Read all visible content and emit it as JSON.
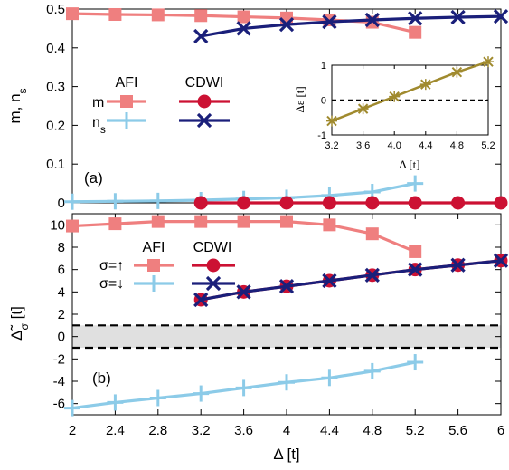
{
  "colors": {
    "afi": "#ef7f7f",
    "cdwi_m": "#cc1133",
    "ns_afi": "#8ccbe8",
    "cdwi_ns": "#1a1f7a",
    "inset_line": "#a08a2e",
    "gap_band": "#e0e0e0"
  },
  "chart_data": [
    {
      "type": "line",
      "panel_label": "(a)",
      "ylabel": "m, n_s",
      "xlim": [
        2,
        6
      ],
      "ylim": [
        0,
        0.5
      ],
      "xticks": [
        2,
        2.4,
        2.8,
        3.2,
        3.6,
        4,
        4.4,
        4.8,
        5.2,
        5.6,
        6
      ],
      "yticks": [
        "0",
        "0.1",
        "0.2",
        "0.3",
        "0.4",
        "0.5"
      ],
      "yticks_values": [
        0,
        0.1,
        0.2,
        0.3,
        0.4,
        0.5
      ],
      "legend": {
        "columns": [
          "AFI",
          "CDWI"
        ],
        "rows": [
          "m",
          "n_s"
        ]
      },
      "series": [
        {
          "name": "m AFI",
          "marker": "square",
          "color": "#ef7f7f",
          "x": [
            2,
            2.4,
            2.8,
            3.2,
            3.6,
            4,
            4.4,
            4.8,
            5.2
          ],
          "values": [
            0.488,
            0.486,
            0.485,
            0.483,
            0.48,
            0.477,
            0.472,
            0.466,
            0.44
          ]
        },
        {
          "name": "n_s AFI",
          "marker": "plus",
          "color": "#8ccbe8",
          "x": [
            2,
            2.4,
            2.8,
            3.2,
            3.6,
            4,
            4.4,
            4.8,
            5.2
          ],
          "values": [
            0.003,
            0.004,
            0.005,
            0.007,
            0.01,
            0.013,
            0.019,
            0.028,
            0.05
          ]
        },
        {
          "name": "m CDWI",
          "marker": "circle",
          "color": "#cc1133",
          "x": [
            3.2,
            3.6,
            4,
            4.4,
            4.8,
            5.2,
            5.6,
            6
          ],
          "values": [
            0,
            0,
            0,
            0,
            0,
            0,
            0,
            0
          ]
        },
        {
          "name": "n_s CDWI",
          "marker": "x",
          "color": "#1a1f7a",
          "x": [
            3.2,
            3.6,
            4,
            4.4,
            4.8,
            5.2,
            5.6,
            6
          ],
          "values": [
            0.43,
            0.45,
            0.46,
            0.467,
            0.472,
            0.476,
            0.479,
            0.481
          ]
        }
      ],
      "inset": {
        "type": "line",
        "xlabel": "Δ [t]",
        "ylabel": "Δε [t]",
        "xlim": [
          3.2,
          5.2
        ],
        "ylim": [
          -1,
          1
        ],
        "xticks": [
          "3.2",
          "3.6",
          "4.0",
          "4.4",
          "4.8",
          "5.2"
        ],
        "xticks_values": [
          3.2,
          3.6,
          4.0,
          4.4,
          4.8,
          5.2
        ],
        "yticks": [
          "-1",
          "0",
          "1"
        ],
        "yticks_values": [
          -1,
          0,
          1
        ],
        "reference_line": 0,
        "series": [
          {
            "x": [
              3.2,
              3.6,
              4.0,
              4.4,
              4.8,
              5.2
            ],
            "values": [
              -0.6,
              -0.25,
              0.1,
              0.45,
              0.8,
              1.1
            ]
          }
        ]
      }
    },
    {
      "type": "line",
      "panel_label": "(b)",
      "xlabel": "Δ [t]",
      "ylabel": "Δ̃_σ [t]",
      "xlim": [
        2,
        6
      ],
      "ylim": [
        -7,
        11
      ],
      "xticks": [
        "2",
        "2.4",
        "2.8",
        "3.2",
        "3.6",
        "4",
        "4.4",
        "4.8",
        "5.2",
        "5.6",
        "6"
      ],
      "xticks_values": [
        2,
        2.4,
        2.8,
        3.2,
        3.6,
        4,
        4.4,
        4.8,
        5.2,
        5.6,
        6
      ],
      "yticks": [
        "-6",
        "-4",
        "-2",
        "0",
        "2",
        "4",
        "6",
        "8",
        "10"
      ],
      "yticks_values": [
        -6,
        -4,
        -2,
        0,
        2,
        4,
        6,
        8,
        10
      ],
      "reference_lines": [
        1,
        -1
      ],
      "legend": {
        "columns": [
          "AFI",
          "CDWI"
        ],
        "rows": [
          "σ=↑",
          "σ=↓"
        ]
      },
      "series": [
        {
          "name": "σ=↑ AFI",
          "marker": "square",
          "color": "#ef7f7f",
          "x": [
            2,
            2.4,
            2.8,
            3.2,
            3.6,
            4,
            4.4,
            4.8,
            5.2
          ],
          "values": [
            9.9,
            10.1,
            10.3,
            10.3,
            10.3,
            10.3,
            10.0,
            9.2,
            7.6
          ]
        },
        {
          "name": "σ=↓ AFI",
          "marker": "plus",
          "color": "#8ccbe8",
          "x": [
            2,
            2.4,
            2.8,
            3.2,
            3.6,
            4,
            4.4,
            4.8,
            5.2
          ],
          "values": [
            -6.4,
            -5.9,
            -5.5,
            -5.1,
            -4.6,
            -4.1,
            -3.7,
            -3.1,
            -2.3
          ]
        },
        {
          "name": "σ=↑ CDWI",
          "marker": "circle",
          "color": "#cc1133",
          "x": [
            3.2,
            3.6,
            4,
            4.4,
            4.8,
            5.2,
            5.6,
            6
          ],
          "values": [
            3.3,
            4.0,
            4.5,
            5.0,
            5.5,
            6.0,
            6.4,
            6.8
          ]
        },
        {
          "name": "σ=↓ CDWI",
          "marker": "x",
          "color": "#1a1f7a",
          "x": [
            3.2,
            3.6,
            4,
            4.4,
            4.8,
            5.2,
            5.6,
            6
          ],
          "values": [
            3.3,
            4.0,
            4.5,
            5.0,
            5.5,
            6.0,
            6.4,
            6.8
          ]
        }
      ]
    }
  ]
}
